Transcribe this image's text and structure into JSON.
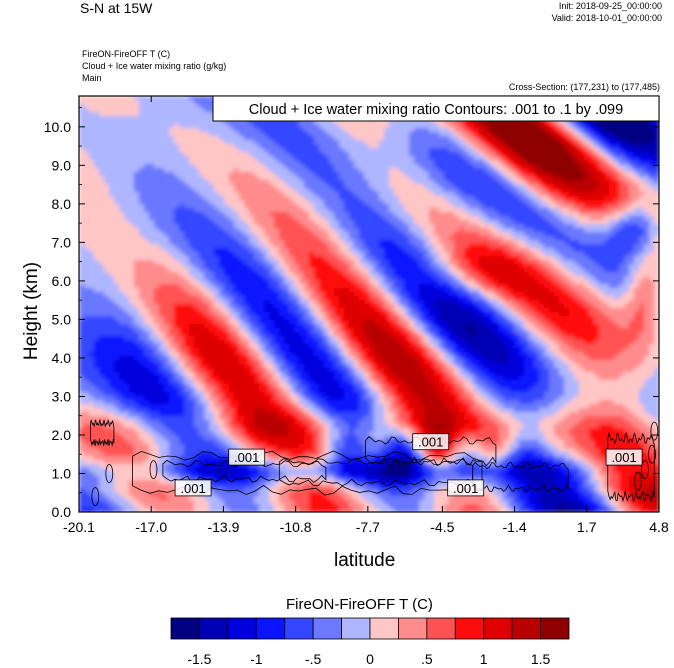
{
  "header": {
    "title": "S-N at 15W",
    "init": "Init: 2018-09-25_00:00:00",
    "valid": "Valid: 2018-10-01_00:00:00",
    "variable_fill": "FireON-FireOFF T   (C)",
    "variable_contour": "Cloud + Ice water mixing ratio   (g/kg)",
    "domain": "Main",
    "cross_section": "Cross-Section: (177,231) to (177,485)"
  },
  "chart_data": {
    "type": "heatmap",
    "title": "S-N at 15W",
    "xlabel": "latitude",
    "ylabel": "Height (km)",
    "xlim": [
      -20.1,
      4.8
    ],
    "ylim": [
      0.0,
      10.8
    ],
    "x_ticks": [
      "-20.1",
      "-17.0",
      "-13.9",
      "-10.8",
      "-7.7",
      "-4.5",
      "-1.4",
      "1.7",
      "4.8"
    ],
    "x_tick_values": [
      -20.1,
      -17.0,
      -13.9,
      -10.8,
      -7.7,
      -4.5,
      -1.4,
      1.7,
      4.8
    ],
    "y_ticks": [
      "0.0",
      "1.0",
      "2.0",
      "3.0",
      "4.0",
      "5.0",
      "6.0",
      "7.0",
      "8.0",
      "9.0",
      "10.0"
    ],
    "y_tick_values": [
      0,
      1,
      2,
      3,
      4,
      5,
      6,
      7,
      8,
      9,
      10
    ],
    "fill_variable": "FireON-FireOFF T (C)",
    "contour_variable": "Cloud + Ice water mixing ratio",
    "contour_legend": "Cloud + Ice water mixing ratio Contours: .001 to .1 by .099",
    "contour_labels": [
      {
        "text": ".001",
        "lat": -12.9,
        "height": 1.4
      },
      {
        "text": ".001",
        "lat": -15.2,
        "height": 0.6
      },
      {
        "text": ".001",
        "lat": -5.0,
        "height": 1.8
      },
      {
        "text": ".001",
        "lat": -3.5,
        "height": 0.6
      },
      {
        "text": ".001",
        "lat": 3.3,
        "height": 1.4
      }
    ],
    "colorbar": {
      "title": "FireON-FireOFF T  (C)",
      "tick_labels": [
        "-1.5",
        "-1",
        "-.5",
        "0",
        ".5",
        "1",
        "1.5"
      ],
      "tick_values": [
        -1.5,
        -1.0,
        -0.5,
        0.0,
        0.5,
        1.0,
        1.5
      ],
      "colors": [
        "#000080",
        "#0000b4",
        "#0000dd",
        "#0a14ff",
        "#3546ff",
        "#6b78ff",
        "#aeb6ff",
        "#ffc6c6",
        "#ff8c8c",
        "#ff5252",
        "#ff0d0d",
        "#de0000",
        "#b80000",
        "#8c0000"
      ]
    },
    "features": [
      {
        "description": "positive anomaly band",
        "lat_range": [
          -20.1,
          4.8
        ],
        "height_range": [
          1.6,
          3.0
        ],
        "sign": "positive"
      },
      {
        "description": "negative anomaly band",
        "lat_range": [
          -20.1,
          2.5
        ],
        "height_range": [
          0.5,
          1.6
        ],
        "sign": "negative"
      },
      {
        "description": "negative anomaly core",
        "lat_range": [
          1.7,
          4.8
        ],
        "height_range": [
          6.5,
          8.5
        ],
        "sign": "negative"
      },
      {
        "description": "positive anomaly core",
        "lat_range": [
          1.7,
          4.8
        ],
        "height_range": [
          4.0,
          7.0
        ],
        "sign": "positive"
      }
    ]
  }
}
